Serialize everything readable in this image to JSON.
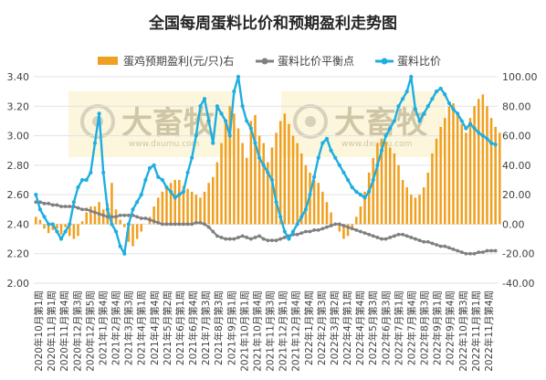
{
  "chart_data": {
    "type": "bar+line",
    "title": "全国每周蛋料比价和预期盈利走势图",
    "watermark": {
      "text": "大畜牧",
      "url": "www.dxumu.com"
    },
    "legend": [
      "蛋鸡预期盈利(元/只)右",
      "蛋料比价平衡点",
      "蛋料比价"
    ],
    "legend_position": "top",
    "left_axis": {
      "min": 2.0,
      "max": 3.4,
      "step": 0.2,
      "ticks": [
        "2.00",
        "2.20",
        "2.40",
        "2.60",
        "2.80",
        "3.00",
        "3.20",
        "3.40"
      ]
    },
    "right_axis": {
      "min": -40,
      "max": 100,
      "step": 20,
      "ticks": [
        "-40.00",
        "-20.00",
        "0.00",
        "20.00",
        "40.00",
        "60.00",
        "80.00",
        "100.00"
      ]
    },
    "x_labels": [
      "2020年10月第1周",
      "2020年11月第1周",
      "2020年11月第4周",
      "2020年12月第3周",
      "2020年12月第5周",
      "2021年1月第4周",
      "2021年2月第4周",
      "2021年3月第3周",
      "2021年4月第1周",
      "2021年4月第4周",
      "2021年5月第2周",
      "2021年6月第1周",
      "2021年6月第4周",
      "2021年7月第3周",
      "2021年8月第3周",
      "2021年9月第1周",
      "2021年10月第1周",
      "2021年10月第4周",
      "2021年11月第3周",
      "2021年12月第1周",
      "2021年12月第4周",
      "2022年1月第4周",
      "2022年2月第3周",
      "2022年3月第2周",
      "2022年4月第1周",
      "2022年4月第4周",
      "2022年5月第3周",
      "2022年6月第3周",
      "2022年7月第1周",
      "2022年7月第4周",
      "2022年8月第3周",
      "2022年9月第1周",
      "2022年9月第4周",
      "2022年10月第3周",
      "2022年11月第1周",
      "2022年11月第4周"
    ],
    "series": [
      {
        "name": "蛋鸡预期盈利(元/只)右",
        "type": "bar",
        "axis": "right",
        "color": "#f0a020",
        "values": [
          5,
          3,
          -3,
          -6,
          -4,
          -3,
          -7,
          -2,
          -8,
          -10,
          -8,
          2,
          8,
          12,
          12,
          15,
          10,
          14,
          28,
          10,
          3,
          -2,
          -12,
          -15,
          -10,
          -5,
          0,
          5,
          12,
          18,
          22,
          25,
          28,
          30,
          30,
          26,
          24,
          22,
          20,
          18,
          22,
          28,
          32,
          42,
          55,
          70,
          80,
          75,
          65,
          55,
          45,
          70,
          74,
          60,
          55,
          42,
          52,
          62,
          70,
          75,
          68,
          60,
          55,
          48,
          40,
          35,
          30,
          28,
          22,
          15,
          8,
          0,
          -5,
          -10,
          -8,
          -2,
          5,
          12,
          22,
          35,
          45,
          55,
          58,
          56,
          52,
          48,
          40,
          30,
          25,
          20,
          18,
          20,
          25,
          35,
          48,
          58,
          66,
          72,
          80,
          82,
          75,
          68,
          62,
          72,
          80,
          85,
          88,
          80,
          72,
          66,
          62
        ]
      },
      {
        "name": "蛋料比价平衡点",
        "type": "line",
        "axis": "left",
        "color": "#808080",
        "values": [
          2.55,
          2.55,
          2.54,
          2.54,
          2.53,
          2.53,
          2.52,
          2.52,
          2.52,
          2.52,
          2.51,
          2.5,
          2.5,
          2.49,
          2.48,
          2.47,
          2.46,
          2.45,
          2.45,
          2.45,
          2.46,
          2.46,
          2.46,
          2.46,
          2.45,
          2.44,
          2.44,
          2.43,
          2.42,
          2.41,
          2.4,
          2.4,
          2.4,
          2.4,
          2.4,
          2.4,
          2.4,
          2.4,
          2.41,
          2.41,
          2.4,
          2.38,
          2.35,
          2.32,
          2.31,
          2.3,
          2.3,
          2.3,
          2.31,
          2.32,
          2.31,
          2.3,
          2.31,
          2.32,
          2.3,
          2.29,
          2.29,
          2.29,
          2.3,
          2.31,
          2.32,
          2.33,
          2.33,
          2.34,
          2.35,
          2.35,
          2.36,
          2.36,
          2.37,
          2.38,
          2.39,
          2.4,
          2.4,
          2.39,
          2.38,
          2.37,
          2.36,
          2.35,
          2.34,
          2.33,
          2.32,
          2.31,
          2.3,
          2.3,
          2.31,
          2.32,
          2.33,
          2.33,
          2.32,
          2.31,
          2.3,
          2.29,
          2.28,
          2.28,
          2.27,
          2.26,
          2.25,
          2.25,
          2.24,
          2.23,
          2.22,
          2.21,
          2.2,
          2.2,
          2.2,
          2.21,
          2.21,
          2.22,
          2.22,
          2.22
        ]
      },
      {
        "name": "蛋料比价",
        "type": "line",
        "axis": "left",
        "color": "#1eaee0",
        "values": [
          2.6,
          2.5,
          2.45,
          2.4,
          2.4,
          2.35,
          2.3,
          2.35,
          2.4,
          2.55,
          2.65,
          2.7,
          2.7,
          2.75,
          2.95,
          3.15,
          2.75,
          2.5,
          2.4,
          2.35,
          2.25,
          2.2,
          2.4,
          2.5,
          2.55,
          2.6,
          2.7,
          2.78,
          2.8,
          2.72,
          2.7,
          2.65,
          2.62,
          2.58,
          2.6,
          2.62,
          2.75,
          2.85,
          3.0,
          3.2,
          3.25,
          3.1,
          2.95,
          3.2,
          3.15,
          3.1,
          3.0,
          3.3,
          3.4,
          3.2,
          3.1,
          3.05,
          2.95,
          2.85,
          2.8,
          2.75,
          2.7,
          2.55,
          2.45,
          2.35,
          2.3,
          2.35,
          2.4,
          2.45,
          2.5,
          2.6,
          2.72,
          2.85,
          2.95,
          2.98,
          2.9,
          2.85,
          2.8,
          2.75,
          2.7,
          2.65,
          2.62,
          2.6,
          2.58,
          2.62,
          2.7,
          2.8,
          2.9,
          3.0,
          3.05,
          3.1,
          3.2,
          3.25,
          3.3,
          3.4,
          3.18,
          3.1,
          3.15,
          3.2,
          3.25,
          3.3,
          3.32,
          3.28,
          3.22,
          3.18,
          3.15,
          3.1,
          3.05,
          3.08,
          3.05,
          3.02,
          3.0,
          2.98,
          2.95,
          2.94
        ]
      }
    ]
  }
}
